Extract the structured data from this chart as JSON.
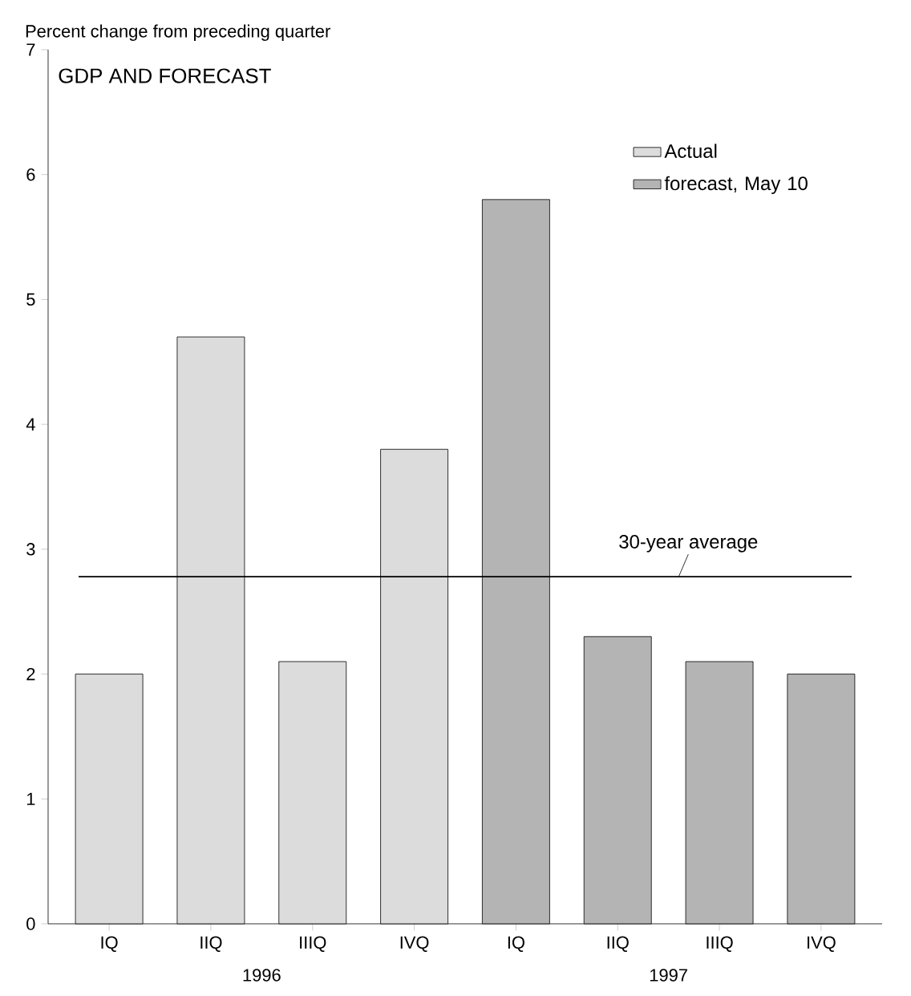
{
  "chart_data": {
    "type": "bar",
    "title": "GDP AND FORECAST",
    "ylabel": "Percent change from preceding quarter",
    "categories": [
      "IQ",
      "IIQ",
      "IIIQ",
      "IVQ",
      "IQ",
      "IIQ",
      "IIIQ",
      "IVQ"
    ],
    "series": [
      {
        "name": "Actual",
        "color": "#dcdcdc",
        "values": [
          2.0,
          4.7,
          2.1,
          3.8,
          null,
          null,
          null,
          null
        ]
      },
      {
        "name": "forecast, May 10",
        "color": "#b4b4b4",
        "values": [
          null,
          null,
          null,
          null,
          5.8,
          2.3,
          2.1,
          2.0
        ]
      }
    ],
    "ylim": [
      0,
      7
    ],
    "yticks": [
      0,
      1,
      2,
      3,
      4,
      5,
      6,
      7
    ],
    "ref_lines": [
      {
        "axis": "y",
        "value": 2.78,
        "label": "30-year average"
      }
    ],
    "annotations": [
      "1996",
      "1997"
    ],
    "legend": "top right",
    "grid": false
  }
}
